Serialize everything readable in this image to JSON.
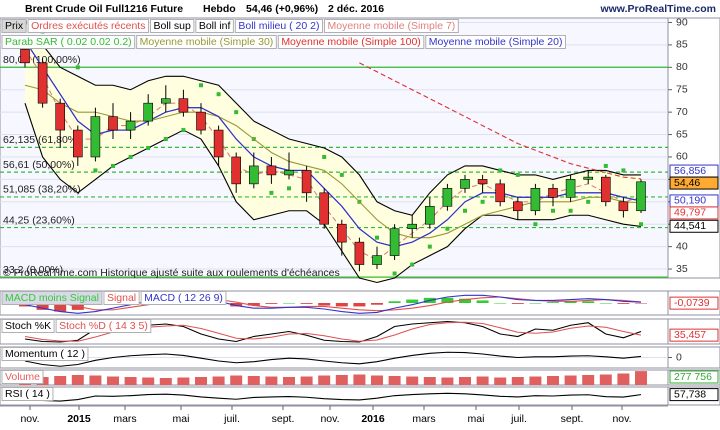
{
  "header": {
    "title": "Brent Crude Oil Full1216 Future",
    "period": "Hebdo",
    "price": "54,46 (+0,96%)",
    "date": "2 déc. 2016",
    "site": "www.ProRealTime.com",
    "copyright": "© ProRealTime.com Historique ajusté suite aux roulements d'échéances"
  },
  "time_labels": [
    "nov.",
    "2015",
    "mars",
    "mai",
    "juil.",
    "sept.",
    "nov.",
    "2016",
    "mars",
    "mai",
    "juil.",
    "sept.",
    "nov."
  ],
  "chart_data": [
    {
      "type": "candlestick",
      "ylim": [
        33,
        91
      ],
      "yticks": [
        35,
        40,
        45,
        50,
        55,
        60,
        65,
        70,
        75,
        80,
        85,
        90
      ],
      "up_color": "#33bb33",
      "down_color": "#e03030",
      "legend_extra": [
        {
          "label": "Prix",
          "color": "#000000"
        },
        {
          "label": "Ordres exécutés récents",
          "color": "#e05050"
        }
      ],
      "open": [
        84,
        81,
        72,
        66,
        60,
        69,
        66,
        68,
        72,
        73,
        70,
        66,
        60,
        54,
        58,
        56,
        57,
        52,
        45,
        41,
        36,
        38,
        44,
        45,
        49,
        53,
        55,
        54,
        50,
        48,
        53,
        51,
        55,
        55.5,
        50,
        48
      ],
      "high": [
        86,
        82,
        73,
        67,
        71,
        72,
        70,
        74,
        76,
        75,
        72,
        67,
        61,
        61,
        60,
        61,
        58,
        53,
        46,
        42,
        40,
        45,
        47,
        51,
        54,
        56,
        56,
        55,
        51,
        54,
        54,
        56,
        57,
        56,
        51,
        55
      ],
      "low": [
        80,
        71,
        62,
        58,
        59,
        64,
        64,
        67,
        70,
        69,
        65,
        58,
        52,
        53,
        54,
        55,
        50,
        44,
        38,
        34.5,
        35,
        37,
        42,
        44,
        48,
        52,
        52,
        49,
        46,
        47,
        49,
        50,
        54,
        49,
        46.5,
        47.5
      ],
      "close": [
        81,
        72,
        66,
        60,
        69,
        66,
        68,
        72,
        73,
        70,
        66,
        60,
        54,
        58,
        56,
        57,
        52,
        45,
        41,
        36,
        38,
        44,
        45,
        49,
        53,
        55,
        54,
        50,
        48,
        53,
        51,
        55,
        55.5,
        50,
        48,
        54.46
      ],
      "series": [
        {
          "name": "Boll sup",
          "color": "#000000",
          "fill": "#ffffe0",
          "values": [
            87,
            85,
            80,
            78,
            76,
            76,
            75,
            77,
            78,
            78,
            77,
            76,
            72,
            68,
            66,
            64,
            63,
            62,
            60,
            56,
            50,
            48,
            47,
            52,
            56,
            58,
            58,
            57,
            56,
            56,
            55,
            56,
            57,
            57,
            56,
            56
          ]
        },
        {
          "name": "Boll inf",
          "color": "#000000",
          "values": [
            72,
            60,
            55,
            52,
            55,
            58,
            60,
            62,
            64,
            66,
            64,
            58,
            50,
            46,
            47,
            48,
            48,
            45,
            39,
            33,
            32,
            33,
            36,
            38,
            40,
            44,
            47,
            47,
            46,
            46,
            46,
            47,
            47,
            46,
            45,
            44.5
          ]
        },
        {
          "name": "Boll milieu ( 20 2)",
          "color": "#3333cc",
          "values": [
            86,
            80,
            74,
            68,
            65,
            66,
            66,
            68,
            70,
            71,
            71,
            69,
            64,
            60,
            58,
            57,
            57,
            53,
            49,
            44,
            41,
            40,
            41,
            43,
            46,
            50,
            52,
            52,
            51,
            51,
            51,
            52,
            52,
            52,
            51,
            50.19
          ]
        },
        {
          "name": "Moyenne mobile (Simple 7)",
          "color": "#e08080",
          "style": "dashed",
          "values": [
            84,
            78,
            70,
            64,
            64,
            67,
            67,
            69,
            72,
            72,
            69,
            64,
            58,
            56,
            57,
            56,
            55,
            49,
            44,
            39,
            37,
            40,
            43,
            46,
            50,
            53,
            54,
            52,
            50,
            50,
            52,
            53,
            54,
            52,
            50,
            51
          ]
        },
        {
          "name": "Parab SAR ( 0.02 0.02 0.2)",
          "color": "#33bb33",
          "style": "dots",
          "values": [
            90,
            88,
            85,
            80,
            57,
            58,
            60,
            62,
            64,
            66,
            76,
            74,
            70,
            64,
            52,
            53,
            54,
            60,
            56,
            50,
            42,
            34,
            36,
            40,
            44,
            48,
            50,
            57,
            56,
            45,
            48,
            48,
            50,
            58,
            57,
            45
          ]
        },
        {
          "name": "Moyenne mobile (Simple 30)",
          "color": "#999933",
          "values": [
            76,
            75,
            72,
            70,
            70,
            69,
            68,
            68,
            69,
            70,
            70,
            69,
            67,
            64,
            61,
            59,
            58,
            57,
            54,
            50,
            46,
            43,
            42,
            42,
            43,
            45,
            47,
            48,
            49,
            50,
            50,
            50,
            51,
            51,
            50,
            49.8
          ]
        },
        {
          "name": "Moyenne mobile (Simple 100)",
          "color": "#e03030",
          "style": "dashed",
          "values": [
            null,
            null,
            null,
            null,
            null,
            null,
            null,
            null,
            null,
            null,
            null,
            null,
            null,
            null,
            null,
            null,
            null,
            null,
            null,
            81,
            79,
            77,
            75,
            73,
            71,
            69,
            67,
            65,
            63,
            61.5,
            60,
            58.5,
            57.5,
            56.5,
            55.5,
            55.1
          ]
        },
        {
          "name": "Moyenne mobile (Simple 20)",
          "color": "#3333cc",
          "values": [
            86,
            80,
            74,
            68,
            65,
            66,
            66,
            68,
            70,
            71,
            71,
            69,
            64,
            60,
            58,
            57,
            57,
            53,
            49,
            44,
            41,
            40,
            41,
            43,
            46,
            50,
            52,
            52,
            51,
            51,
            51,
            52,
            52,
            52,
            51,
            50.19
          ]
        }
      ],
      "levels": [
        {
          "value": 80.02,
          "label": "80,02 (100,00%)",
          "style": "solid"
        },
        {
          "value": 62.135,
          "label": "62,135 (61,80%)",
          "style": "dashed"
        },
        {
          "value": 56.61,
          "label": "56,61 (50,00%)",
          "style": "dashed"
        },
        {
          "value": 51.085,
          "label": "51,085 (38,20%)",
          "style": "dashed"
        },
        {
          "value": 44.25,
          "label": "44,25 (23,60%)",
          "style": "dashed"
        },
        {
          "value": 33.2,
          "label": "33,2 (0,00%)",
          "style": "solid"
        }
      ],
      "tags": [
        {
          "value": 56.856,
          "label": "56,856",
          "color": "#3333cc"
        },
        {
          "value": 54.46,
          "label": "54,46",
          "color": "#000000",
          "background": "#ffaa33"
        },
        {
          "value": 50.19,
          "label": "50,190",
          "color": "#3333cc"
        },
        {
          "value": 49.797,
          "label": "49,797",
          "color": "#e03030"
        },
        {
          "value": 44.541,
          "label": "44,541",
          "color": "#000000"
        }
      ]
    },
    {
      "type": "combo",
      "ylim": [
        -7,
        7
      ],
      "series": [
        {
          "name": "MACD moins Signal",
          "type": "bar",
          "color": "#33cc33",
          "negative_color": "#dd4444",
          "values": [
            -2,
            -4,
            -5,
            -4,
            -1,
            1,
            1.5,
            2,
            2,
            1.5,
            0.5,
            -1,
            -2,
            -1.5,
            -0.5,
            0,
            -0.5,
            -1.5,
            -2,
            -2,
            -1,
            1,
            2,
            3,
            3,
            2.5,
            1.5,
            0,
            -0.5,
            0,
            0.5,
            1,
            1,
            0,
            -0.5,
            -0.0739
          ]
        },
        {
          "name": "Signal",
          "type": "line",
          "color": "#e05050",
          "values": [
            1,
            1,
            0,
            -2,
            -4,
            -4,
            -2.5,
            -1,
            0.5,
            1.5,
            2,
            2,
            0.5,
            -1.5,
            -2.5,
            -2.5,
            -2,
            -2,
            -3,
            -4,
            -4.5,
            -4,
            -3,
            -1.5,
            0.5,
            2,
            3,
            3.5,
            2.5,
            1.5,
            1,
            1,
            1.5,
            2,
            1.5,
            0.6
          ]
        },
        {
          "name": "MACD ( 12 26 9)",
          "type": "line",
          "color": "#3333cc",
          "values": [
            -1,
            -3,
            -5,
            -6,
            -5,
            -3,
            -1,
            1,
            2.5,
            3,
            2.5,
            1,
            -1.5,
            -3,
            -3,
            -2.5,
            -2.5,
            -3.5,
            -5,
            -6,
            -5.5,
            -3,
            -1,
            1.5,
            3.5,
            4.5,
            4.5,
            3.5,
            2,
            1.5,
            1.5,
            2,
            2.5,
            2,
            1,
            0.5
          ]
        }
      ],
      "tags": [
        {
          "value": -0.0739,
          "label": "-0,0739",
          "color": "#e03030"
        }
      ]
    },
    {
      "type": "line",
      "ylim": [
        0,
        100
      ],
      "series": [
        {
          "name": "Stoch %K",
          "color": "#000000",
          "values": [
            20,
            10,
            8,
            15,
            60,
            70,
            55,
            75,
            80,
            70,
            40,
            20,
            10,
            30,
            40,
            50,
            35,
            15,
            10,
            8,
            30,
            70,
            80,
            85,
            90,
            85,
            70,
            40,
            30,
            60,
            55,
            75,
            85,
            40,
            25,
            50
          ]
        },
        {
          "name": "Stoch %D ( 14 3 5)",
          "color": "#e05050",
          "values": [
            30,
            18,
            12,
            11,
            28,
            48,
            62,
            67,
            72,
            75,
            62,
            43,
            23,
            20,
            27,
            40,
            42,
            33,
            20,
            11,
            16,
            36,
            60,
            78,
            85,
            87,
            82,
            65,
            47,
            43,
            48,
            63,
            72,
            67,
            50,
            35.457
          ]
        }
      ],
      "tags": [
        {
          "value": 35.457,
          "label": "35,457",
          "color": "#e03030"
        }
      ]
    },
    {
      "type": "line",
      "ylim": [
        -30,
        30
      ],
      "yticks": [
        0
      ],
      "series": [
        {
          "name": "Momentum ( 12 )",
          "color": "#000000",
          "values": [
            -10,
            -20,
            -25,
            -20,
            -8,
            0,
            5,
            8,
            10,
            6,
            -2,
            -10,
            -15,
            -12,
            -6,
            -2,
            -4,
            -10,
            -15,
            -18,
            -12,
            -2,
            6,
            12,
            15,
            14,
            10,
            4,
            0,
            2,
            2,
            4,
            5,
            2,
            -2,
            3
          ]
        }
      ]
    },
    {
      "type": "bar",
      "ylim": [
        0,
        300000
      ],
      "series": [
        {
          "name": "Volume",
          "color": "#e06060",
          "values": [
            150000,
            160000,
            180000,
            200000,
            190000,
            170000,
            160000,
            150000,
            140000,
            150000,
            160000,
            170000,
            190000,
            180000,
            170000,
            160000,
            170000,
            190000,
            200000,
            210000,
            190000,
            180000,
            170000,
            160000,
            150000,
            160000,
            170000,
            150000,
            160000,
            170000,
            180000,
            190000,
            200000,
            210000,
            230000,
            277756
          ]
        }
      ],
      "tags": [
        {
          "value": 277756,
          "label": "277 756",
          "color": "#33aa33"
        }
      ]
    },
    {
      "type": "line",
      "ylim": [
        0,
        100
      ],
      "series": [
        {
          "name": "RSI ( 14 )",
          "color": "#000000",
          "values": [
            30,
            25,
            22,
            30,
            50,
            48,
            52,
            58,
            60,
            55,
            45,
            38,
            32,
            42,
            45,
            47,
            43,
            35,
            30,
            28,
            38,
            52,
            58,
            62,
            65,
            62,
            56,
            48,
            45,
            52,
            50,
            55,
            57,
            46,
            44,
            57.738
          ]
        }
      ],
      "tags": [
        {
          "value": 57.738,
          "label": "57,738",
          "color": "#000000"
        }
      ]
    }
  ]
}
